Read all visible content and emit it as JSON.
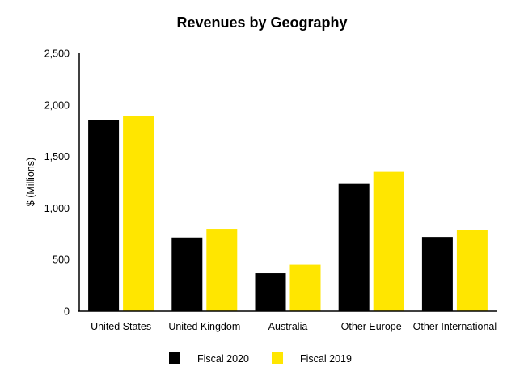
{
  "chart_data": {
    "type": "bar",
    "title": "Revenues by Geography",
    "xlabel": "",
    "ylabel": "$ (Millions)",
    "ylim": [
      0,
      2500
    ],
    "yticks": [
      "0",
      "500",
      "1,000",
      "1,500",
      "2,000",
      "2,500"
    ],
    "ytick_values": [
      0,
      500,
      1000,
      1500,
      2000,
      2500
    ],
    "grid": false,
    "legend_position": "bottom",
    "categories": [
      "United States",
      "United Kingdom",
      "Australia",
      "Other Europe",
      "Other International"
    ],
    "series": [
      {
        "name": "Fiscal 2020",
        "color": "#000000",
        "values": [
          1856,
          715,
          368,
          1233,
          720
        ]
      },
      {
        "name": "Fiscal 2019",
        "color": "#FFE600",
        "values": [
          1895,
          799,
          450,
          1351,
          791
        ]
      }
    ]
  }
}
